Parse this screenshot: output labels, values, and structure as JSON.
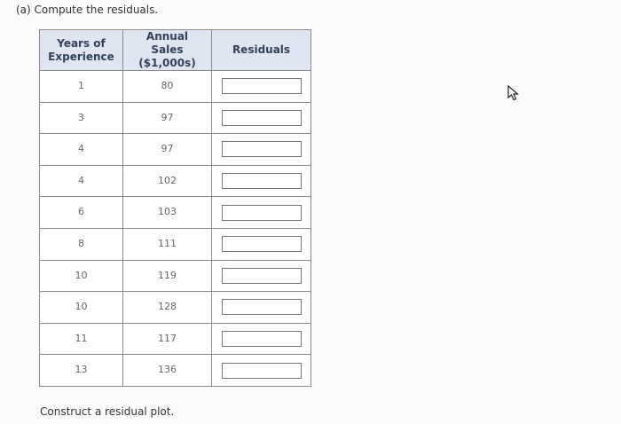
{
  "prompt": "(a) Compute the residuals.",
  "table": {
    "headers": [
      "Years of Experience",
      "Annual Sales ($1,000s)",
      "Residuals"
    ],
    "rows": [
      [
        1,
        80
      ],
      [
        3,
        97
      ],
      [
        4,
        97
      ],
      [
        4,
        102
      ],
      [
        6,
        103
      ],
      [
        8,
        111
      ],
      [
        10,
        119
      ],
      [
        10,
        128
      ],
      [
        11,
        117
      ],
      [
        13,
        136
      ]
    ]
  },
  "footer": "Construct a residual plot."
}
